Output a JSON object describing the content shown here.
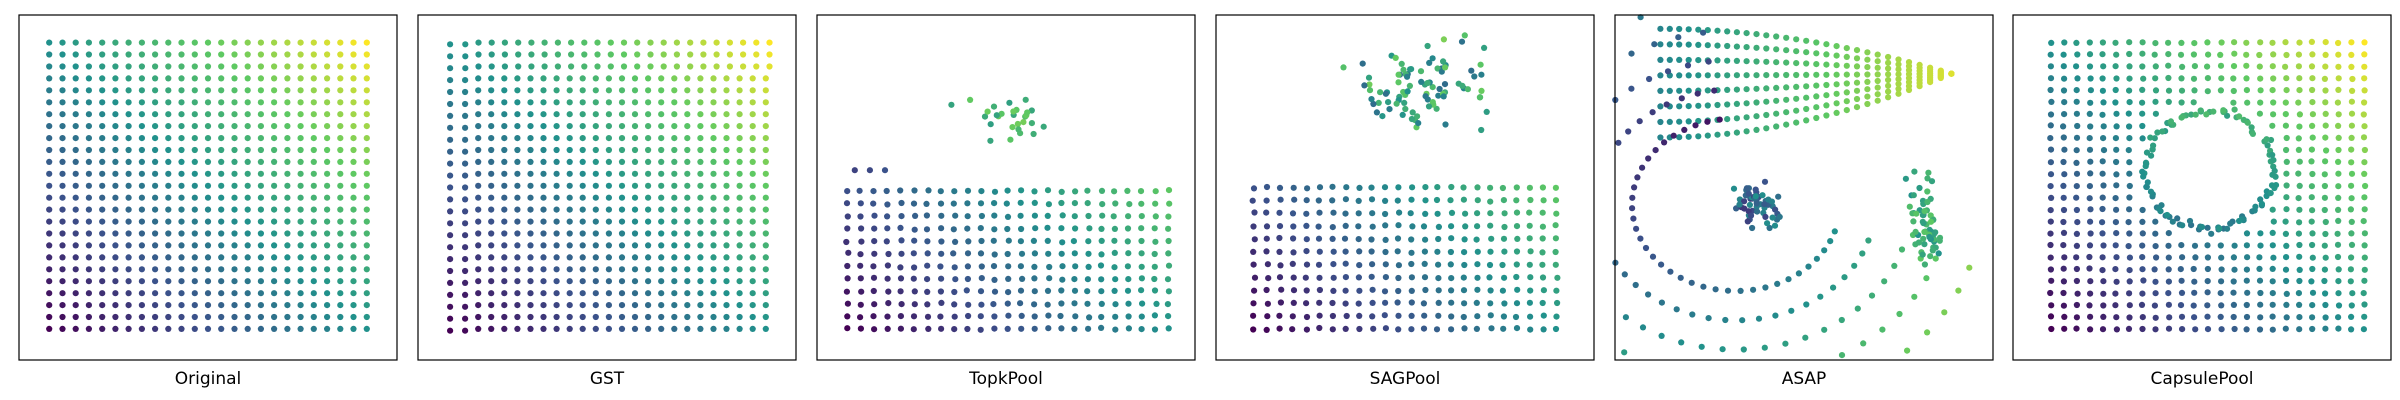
{
  "figure": {
    "panel_titles": [
      "Original",
      "GST",
      "TopkPool",
      "SAGPool",
      "ASAP",
      "CapsulePool"
    ]
  },
  "chart_data": {
    "type": "scatter",
    "title": "",
    "xlabel": "",
    "ylabel": "",
    "axes_visible": false,
    "colormap": "viridis",
    "colormap_stops": [
      "#440154",
      "#3b528b",
      "#21918c",
      "#5ec962",
      "#fde725"
    ],
    "color_encoding": "x + y position of the original grid node",
    "description_unit": "normalized coordinates [0,1]; y up",
    "panels": [
      {
        "name": "Original",
        "kind": "grid",
        "grid": {
          "rows": 25,
          "cols": 25,
          "x_range": [
            0.08,
            0.92
          ],
          "y_range": [
            0.09,
            0.92
          ]
        }
      },
      {
        "name": "GST",
        "kind": "grid-warp",
        "grid": {
          "rows": 25,
          "cols": 25,
          "x_range": [
            0.09,
            0.92
          ],
          "y_range": [
            0.09,
            0.92
          ]
        },
        "notes": "near-regular grid, left column and top-right corner compressed"
      },
      {
        "name": "TopkPool",
        "kind": "grid-partial",
        "grid": {
          "rows": 12,
          "cols": 25,
          "x_range": [
            0.08,
            0.93
          ],
          "y_range": [
            0.09,
            0.49
          ]
        },
        "scatter_cluster": {
          "center": [
            0.5,
            0.7
          ],
          "spread": [
            0.18,
            0.12
          ],
          "count": 28
        },
        "notes": "only lower half of grid retained, few scattered nodes above"
      },
      {
        "name": "SAGPool",
        "kind": "grid-partial",
        "grid": {
          "rows": 12,
          "cols": 24,
          "x_range": [
            0.1,
            0.9
          ],
          "y_range": [
            0.09,
            0.5
          ]
        },
        "scatter_cluster": {
          "center": [
            0.55,
            0.8
          ],
          "spread": [
            0.25,
            0.16
          ],
          "count": 90
        },
        "notes": "lower grid plus dense cloud of displaced nodes at top"
      },
      {
        "name": "ASAP",
        "kind": "distorted",
        "notes": "grid collapsed toward upper-right fan and curved concentric arcs"
      },
      {
        "name": "CapsulePool",
        "kind": "grid-warp",
        "grid": {
          "rows": 25,
          "cols": 25,
          "x_range": [
            0.1,
            0.93
          ],
          "y_range": [
            0.09,
            0.92
          ]
        },
        "notes": "regular outer grid with a swirled interior ring"
      }
    ]
  }
}
